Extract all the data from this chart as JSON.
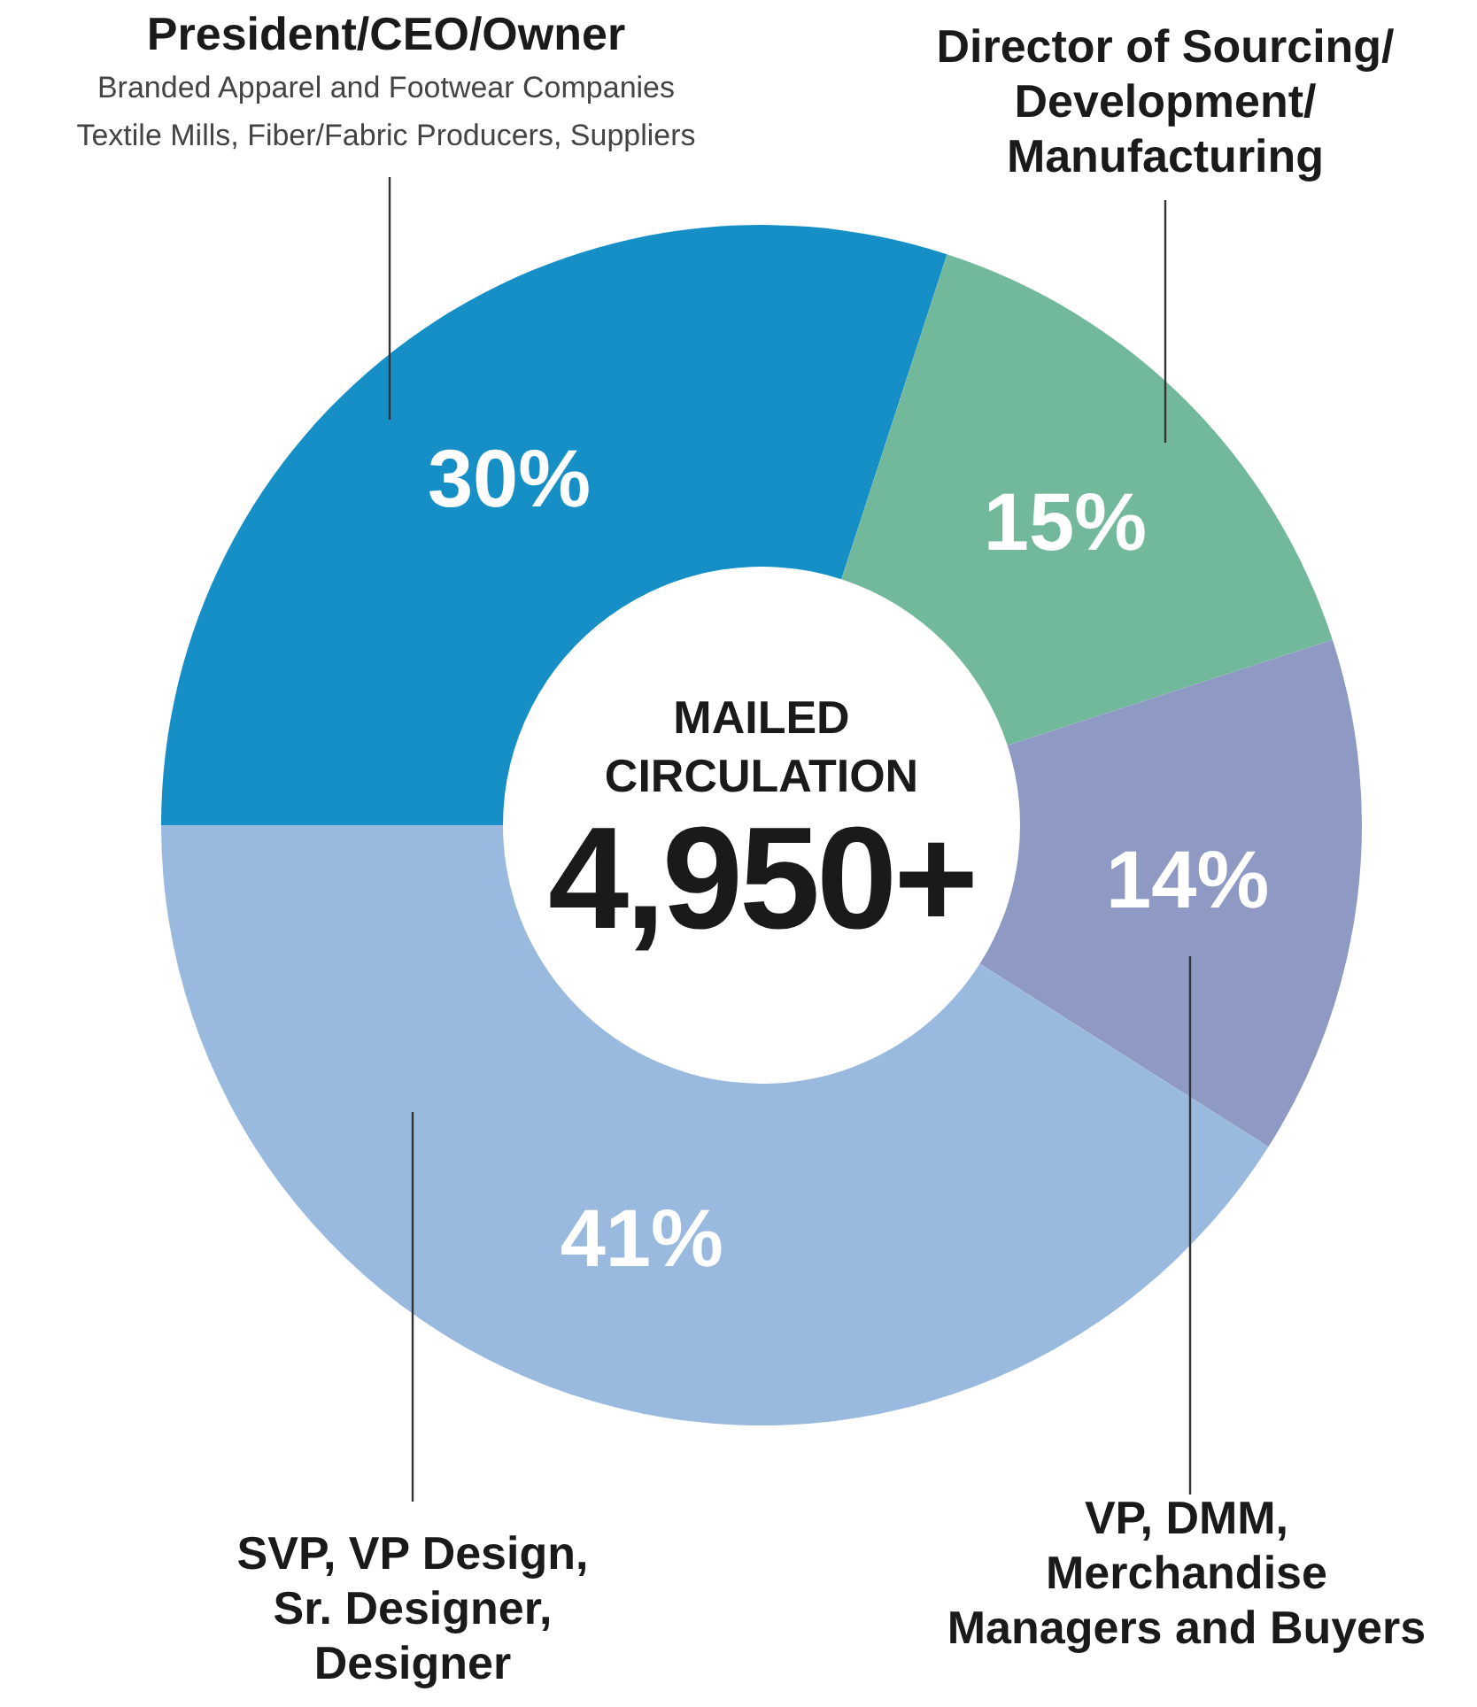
{
  "chart_data": {
    "type": "donut",
    "title": "MAILED\nCIRCULATION",
    "subtitle": "4,950+",
    "categories": [
      "President/CEO/Owner",
      "Director of Sourcing/\nDevelopment/\nManufacturing",
      "VP, DMM,\nMerchandise\nManagers and Buyers",
      "SVP, VP Design,\nSr. Designer,\nDesigner"
    ],
    "values": [
      30,
      15,
      14,
      41
    ],
    "value_labels": [
      "30%",
      "15%",
      "14%",
      "41%"
    ],
    "colors": [
      "#168fc6",
      "#72b99b",
      "#8e9ac4",
      "#9ab9df"
    ],
    "annotations": [
      "Branded Apparel and Footwear Companies\nTextile Mills, Fiber/Fabric Producers, Suppliers"
    ]
  }
}
